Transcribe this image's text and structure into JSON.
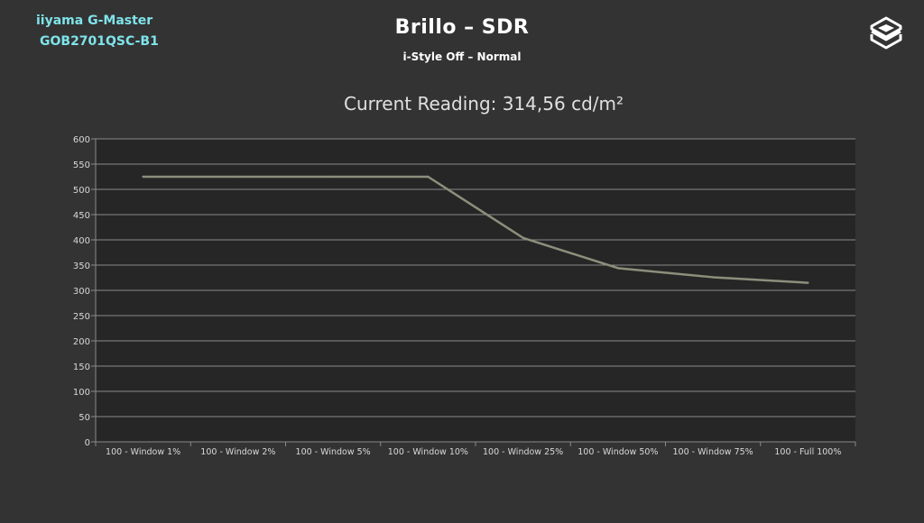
{
  "header": {
    "brand_line1": "iiyama G-Master",
    "brand_line2": "GOB2701QSC-B1",
    "title": "Brillo – SDR",
    "subtitle": "i-Style Off – Normal",
    "logo_icon": "layered-hexagon-logo-icon"
  },
  "colors": {
    "background": "#333333",
    "plot_background": "#262626",
    "grid": "#8a8a8a",
    "series": "#8d8f7c",
    "brand": "#7fe3ea"
  },
  "chart_data": {
    "type": "line",
    "title": "Current Reading: 314,56 cd/m²",
    "xlabel": "",
    "ylabel": "",
    "categories": [
      "100 - Window  1%",
      "100 - Window  2%",
      "100 - Window  5%",
      "100 - Window 10%",
      "100 - Window 25%",
      "100 - Window 50%",
      "100 - Window 75%",
      "100 - Full  100%"
    ],
    "series": [
      {
        "values": [
          525,
          525,
          525,
          525,
          404,
          344,
          326,
          315
        ]
      }
    ],
    "ylim": [
      0,
      600
    ],
    "yticks": [
      0,
      50,
      100,
      150,
      200,
      250,
      300,
      350,
      400,
      450,
      500,
      550,
      600
    ],
    "grid": true,
    "legend": "none"
  }
}
